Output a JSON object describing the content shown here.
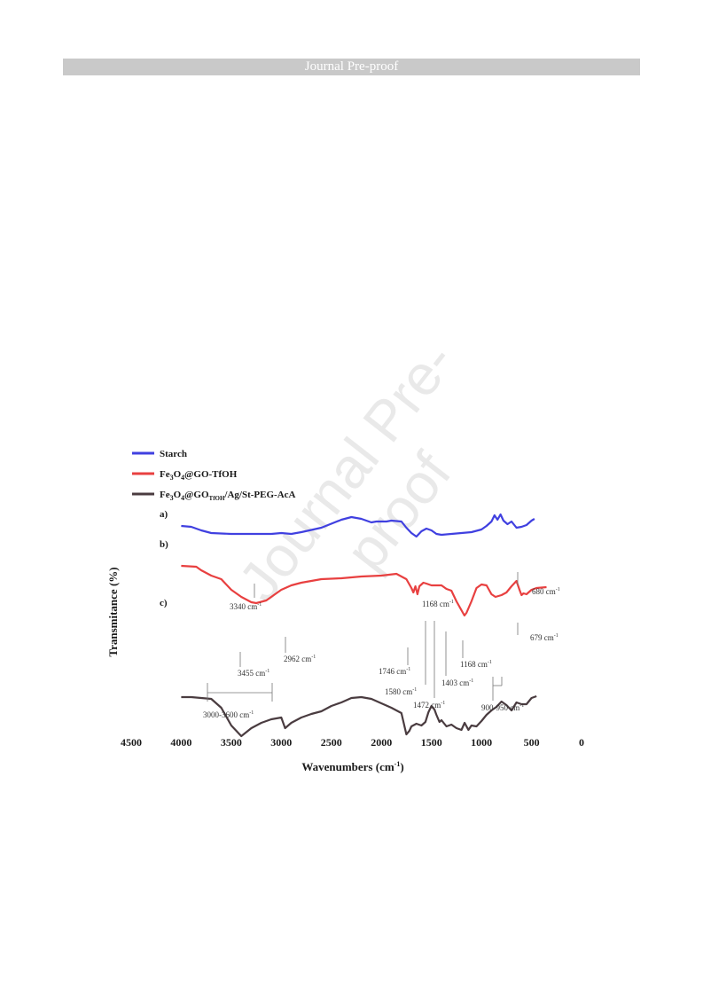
{
  "header": {
    "text": "Journal Pre-proof"
  },
  "watermark": {
    "text": "Journal Pre-proof"
  },
  "chart_data": {
    "type": "line",
    "title": "",
    "xlabel": "Wavenumbers (cm-1)",
    "ylabel": "Transmitance (%)",
    "xlim": [
      4500,
      0
    ],
    "x_ticks": [
      4500,
      4000,
      3500,
      3000,
      2500,
      2000,
      1500,
      1000,
      500,
      0
    ],
    "legend_position": "top-left",
    "series": [
      {
        "name": "Starch",
        "trace_label": "a)",
        "color": "#4040e0",
        "points": [
          [
            4000,
            15
          ],
          [
            3900,
            16
          ],
          [
            3800,
            20
          ],
          [
            3700,
            23
          ],
          [
            3500,
            24
          ],
          [
            3300,
            24
          ],
          [
            3100,
            24
          ],
          [
            3000,
            23
          ],
          [
            2900,
            24
          ],
          [
            2800,
            22
          ],
          [
            2600,
            17
          ],
          [
            2400,
            8
          ],
          [
            2300,
            5
          ],
          [
            2200,
            7
          ],
          [
            2100,
            11
          ],
          [
            2050,
            10
          ],
          [
            1950,
            10
          ],
          [
            1900,
            9
          ],
          [
            1800,
            10
          ],
          [
            1750,
            17
          ],
          [
            1700,
            23
          ],
          [
            1650,
            27
          ],
          [
            1600,
            21
          ],
          [
            1550,
            18
          ],
          [
            1500,
            20
          ],
          [
            1450,
            24
          ],
          [
            1400,
            25
          ],
          [
            1300,
            24
          ],
          [
            1200,
            23
          ],
          [
            1100,
            22
          ],
          [
            1000,
            19
          ],
          [
            950,
            15
          ],
          [
            900,
            10
          ],
          [
            870,
            3
          ],
          [
            840,
            8
          ],
          [
            810,
            2
          ],
          [
            780,
            9
          ],
          [
            740,
            13
          ],
          [
            700,
            10
          ],
          [
            650,
            17
          ],
          [
            600,
            16
          ],
          [
            550,
            14
          ],
          [
            500,
            9
          ],
          [
            470,
            7
          ]
        ]
      },
      {
        "name": "Fe3O4@GO-TfOH",
        "trace_label": "b)",
        "color": "#e84040",
        "points": [
          [
            4000,
            35
          ],
          [
            3850,
            36
          ],
          [
            3800,
            40
          ],
          [
            3700,
            46
          ],
          [
            3600,
            50
          ],
          [
            3500,
            62
          ],
          [
            3400,
            70
          ],
          [
            3300,
            76
          ],
          [
            3250,
            77
          ],
          [
            3150,
            74
          ],
          [
            3100,
            70
          ],
          [
            3000,
            62
          ],
          [
            2900,
            57
          ],
          [
            2800,
            54
          ],
          [
            2600,
            50
          ],
          [
            2400,
            49
          ],
          [
            2200,
            47
          ],
          [
            2000,
            46
          ],
          [
            1850,
            44
          ],
          [
            1750,
            50
          ],
          [
            1700,
            60
          ],
          [
            1680,
            65
          ],
          [
            1660,
            58
          ],
          [
            1640,
            67
          ],
          [
            1620,
            58
          ],
          [
            1580,
            54
          ],
          [
            1550,
            55
          ],
          [
            1500,
            57
          ],
          [
            1450,
            57
          ],
          [
            1400,
            57
          ],
          [
            1350,
            61
          ],
          [
            1300,
            63
          ],
          [
            1250,
            75
          ],
          [
            1200,
            85
          ],
          [
            1170,
            91
          ],
          [
            1150,
            88
          ],
          [
            1100,
            75
          ],
          [
            1050,
            60
          ],
          [
            1000,
            56
          ],
          [
            950,
            57
          ],
          [
            900,
            67
          ],
          [
            860,
            70
          ],
          [
            800,
            68
          ],
          [
            750,
            65
          ],
          [
            700,
            58
          ],
          [
            650,
            52
          ],
          [
            620,
            62
          ],
          [
            600,
            68
          ],
          [
            580,
            66
          ],
          [
            550,
            67
          ],
          [
            500,
            62
          ],
          [
            450,
            60
          ],
          [
            350,
            59
          ]
        ]
      },
      {
        "name": "Fe3O4@GOTfOH/Ag/St-PEG-AcA",
        "trace_label": "c)",
        "color": "#4a3c40",
        "points": [
          [
            4000,
            108
          ],
          [
            3900,
            108
          ],
          [
            3800,
            109
          ],
          [
            3700,
            110
          ],
          [
            3600,
            120
          ],
          [
            3500,
            140
          ],
          [
            3400,
            152
          ],
          [
            3300,
            143
          ],
          [
            3200,
            137
          ],
          [
            3100,
            133
          ],
          [
            3000,
            131
          ],
          [
            2962,
            143
          ],
          [
            2900,
            137
          ],
          [
            2800,
            131
          ],
          [
            2700,
            127
          ],
          [
            2600,
            124
          ],
          [
            2500,
            118
          ],
          [
            2400,
            114
          ],
          [
            2300,
            109
          ],
          [
            2200,
            108
          ],
          [
            2100,
            110
          ],
          [
            2000,
            115
          ],
          [
            1900,
            120
          ],
          [
            1800,
            126
          ],
          [
            1750,
            150
          ],
          [
            1720,
            146
          ],
          [
            1700,
            141
          ],
          [
            1650,
            138
          ],
          [
            1600,
            140
          ],
          [
            1560,
            136
          ],
          [
            1530,
            125
          ],
          [
            1500,
            118
          ],
          [
            1470,
            122
          ],
          [
            1450,
            128
          ],
          [
            1420,
            136
          ],
          [
            1400,
            134
          ],
          [
            1350,
            141
          ],
          [
            1300,
            139
          ],
          [
            1250,
            143
          ],
          [
            1200,
            145
          ],
          [
            1168,
            137
          ],
          [
            1130,
            145
          ],
          [
            1100,
            140
          ],
          [
            1050,
            141
          ],
          [
            1000,
            135
          ],
          [
            950,
            128
          ],
          [
            900,
            123
          ],
          [
            850,
            119
          ],
          [
            800,
            113
          ],
          [
            750,
            117
          ],
          [
            700,
            123
          ],
          [
            650,
            114
          ],
          [
            600,
            116
          ],
          [
            550,
            116
          ],
          [
            500,
            109
          ],
          [
            450,
            107
          ]
        ]
      }
    ],
    "annotations": [
      {
        "text": "3340 cm-1",
        "x": 3340
      },
      {
        "text": "680 cm-1",
        "x": 680
      },
      {
        "text": "1168  cm-1",
        "x": 1168
      },
      {
        "text": "679 cm-1",
        "x": 679
      },
      {
        "text": "3455  cm-1",
        "x": 3455
      },
      {
        "text": "2962  cm-1",
        "x": 2962
      },
      {
        "text": "1746 cm-1",
        "x": 1746
      },
      {
        "text": "1580 cm-1",
        "x": 1580
      },
      {
        "text": "1472 cm-1",
        "x": 1472
      },
      {
        "text": "1403 cm-1",
        "x": 1403
      },
      {
        "text": "1168 cm-1",
        "x": 1168
      },
      {
        "text": "900-950  cm-1",
        "x": 925
      },
      {
        "text": "3000-3600  cm-1",
        "x": 3300
      }
    ]
  }
}
